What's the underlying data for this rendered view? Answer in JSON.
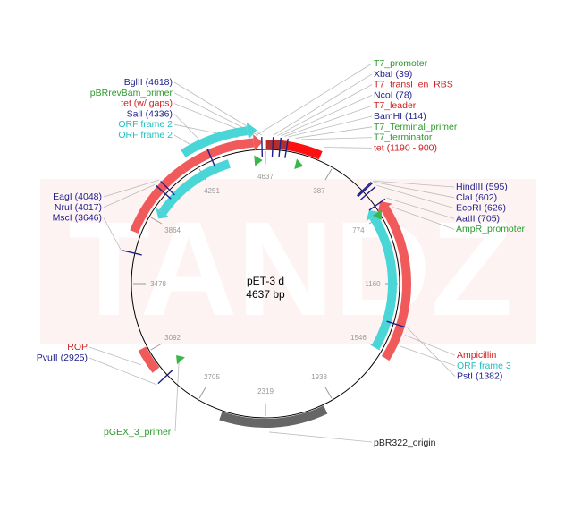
{
  "plasmid": {
    "name": "pET-3 d",
    "size_label": "4637 bp",
    "length": 4637
  },
  "watermark": "TANDZ",
  "colors": {
    "red_feature": "#f15a5a",
    "cyan_feature": "#4ad6d6",
    "gray_feature": "#666666",
    "green_marker": "#3cb54a",
    "blue_site": "#1f1f8a",
    "label_green": "#2c9a2c",
    "label_red": "#d02020",
    "label_blue": "#1f1f8a",
    "label_cyan": "#22c0c0",
    "backbone": "#000000",
    "watermark_bg": "#fdf3f3"
  },
  "ticks": [
    "4637",
    "387",
    "774",
    "1160",
    "1546",
    "1933",
    "2319",
    "2705",
    "3092",
    "3478",
    "3864",
    "4251"
  ],
  "labels_top": [
    {
      "text": "T7_promoter",
      "color": "green"
    },
    {
      "text": "XbaI (39)",
      "color": "blue"
    },
    {
      "text": "T7_transl_en_RBS",
      "color": "red"
    },
    {
      "text": "NcoI (78)",
      "color": "blue"
    },
    {
      "text": "T7_leader",
      "color": "red"
    },
    {
      "text": "BamHI (114)",
      "color": "blue"
    },
    {
      "text": "T7_Terminal_primer",
      "color": "green"
    },
    {
      "text": "T7_terminator",
      "color": "green"
    },
    {
      "text": "tet (1190 - 900)",
      "color": "red"
    }
  ],
  "labels_top_left": [
    {
      "text": "BglII (4618)",
      "color": "blue"
    },
    {
      "text": "pBRrevBam_primer",
      "color": "green"
    },
    {
      "text": "tet (w/ gaps)",
      "color": "red"
    },
    {
      "text": "SalI (4336)",
      "color": "blue"
    },
    {
      "text": "ORF frame 2",
      "color": "cyan"
    },
    {
      "text": "ORF frame 2",
      "color": "cyan"
    }
  ],
  "labels_left": [
    {
      "text": "EagI (4048)",
      "color": "blue"
    },
    {
      "text": "NruI (4017)",
      "color": "blue"
    },
    {
      "text": "MscI (3646)",
      "color": "blue"
    }
  ],
  "labels_left_low": [
    {
      "text": "ROP",
      "color": "red"
    },
    {
      "text": "PvuII (2925)",
      "color": "blue"
    }
  ],
  "labels_right": [
    {
      "text": "HindIII (595)",
      "color": "blue"
    },
    {
      "text": "ClaI (602)",
      "color": "blue"
    },
    {
      "text": "EcoRI (626)",
      "color": "blue"
    },
    {
      "text": "AatII (705)",
      "color": "blue"
    },
    {
      "text": "AmpR_promoter",
      "color": "green"
    }
  ],
  "labels_right_low": [
    {
      "text": "Ampicillin",
      "color": "red"
    },
    {
      "text": "ORF frame 3",
      "color": "cyan"
    },
    {
      "text": "PstI (1382)",
      "color": "blue"
    }
  ],
  "label_pgex": {
    "text": "pGEX_3_primer",
    "color": "green"
  },
  "label_origin": {
    "text": "pBR322_origin",
    "color": "black"
  }
}
